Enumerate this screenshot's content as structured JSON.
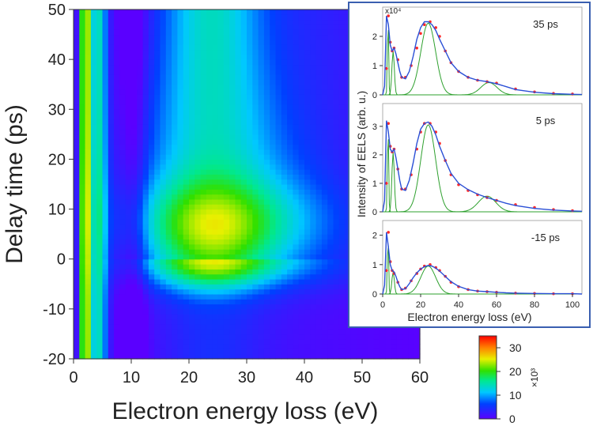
{
  "chart_data": [
    {
      "type": "heatmap",
      "xlabel": "Electron energy loss (eV)",
      "ylabel": "Delay time (ps)",
      "xlim": [
        0,
        60
      ],
      "ylim": [
        -20,
        50
      ],
      "xticks": [
        0,
        10,
        20,
        30,
        40,
        50,
        60
      ],
      "yticks": [
        -20,
        -10,
        0,
        10,
        20,
        30,
        40,
        50
      ],
      "colorbar": {
        "range": [
          0,
          35
        ],
        "ticks": [
          0,
          10,
          20,
          30
        ],
        "multiplier": "×10³"
      },
      "features": {
        "zero_loss_peak_eV": 2,
        "plasmon_peak_eV": 23.5,
        "peak_delay_ps": 7,
        "max_intensity": 35
      }
    },
    {
      "type": "scatter",
      "xlabel": "Electron energy loss (eV)",
      "ylabel": "Intensity of EELS (arb. u.)",
      "xlim": [
        0,
        105
      ],
      "xticks": [
        0,
        20,
        40,
        60,
        80,
        100
      ],
      "multiplier": "x10⁴",
      "panels": [
        {
          "label": "35 ps",
          "ylim": [
            0,
            3
          ],
          "yticks": [
            0,
            1,
            2
          ],
          "series": [
            {
              "name": "data",
              "color": "#ff2a2a",
              "x": [
                2,
                3,
                4,
                5,
                6,
                8,
                10,
                12,
                15,
                18,
                20,
                22,
                25,
                28,
                30,
                33,
                36,
                40,
                45,
                50,
                55,
                60,
                70,
                80,
                90,
                100
              ],
              "y": [
                0.9,
                2.7,
                1.8,
                1.5,
                1.6,
                1.2,
                0.6,
                0.6,
                1.0,
                1.6,
                2.1,
                2.4,
                2.5,
                2.3,
                2.0,
                1.5,
                1.1,
                0.8,
                0.6,
                0.5,
                0.45,
                0.4,
                0.2,
                0.1,
                0.05,
                0.03
              ]
            },
            {
              "name": "fit",
              "color": "#2a4fd6",
              "x": [
                0,
                1,
                2,
                3,
                4,
                5,
                6,
                7,
                8,
                9,
                10,
                12,
                14,
                16,
                18,
                20,
                22,
                24,
                26,
                28,
                30,
                33,
                36,
                40,
                45,
                50,
                55,
                60,
                65,
                70,
                80,
                90,
                100,
                105
              ],
              "y": [
                0,
                0.3,
                2.7,
                2.4,
                1.7,
                1.5,
                1.6,
                1.4,
                1.1,
                0.8,
                0.6,
                0.55,
                0.8,
                1.3,
                1.9,
                2.3,
                2.5,
                2.5,
                2.4,
                2.2,
                1.9,
                1.5,
                1.1,
                0.8,
                0.6,
                0.5,
                0.45,
                0.38,
                0.28,
                0.18,
                0.09,
                0.04,
                0.02,
                0.01
              ]
            },
            {
              "name": "components",
              "color": "#2ea02e",
              "peaks": [
                [
                  2.8,
                  2.7,
                  0.45
                ],
                [
                  5.5,
                  1.5,
                  0.9
                ],
                [
                  24,
                  2.45,
                  5.5
                ],
                [
                  56,
                  0.42,
                  6
                ]
              ]
            }
          ]
        },
        {
          "label": "5 ps",
          "ylim": [
            0,
            3.8
          ],
          "yticks": [
            0,
            1,
            2,
            3
          ],
          "series": [
            {
              "name": "data",
              "color": "#ff2a2a",
              "x": [
                2,
                3,
                4,
                5,
                6,
                8,
                10,
                12,
                15,
                18,
                20,
                22,
                25,
                28,
                30,
                33,
                36,
                40,
                45,
                50,
                55,
                60,
                70,
                80,
                90,
                100
              ],
              "y": [
                1.0,
                3.1,
                2.3,
                2.1,
                2.2,
                1.5,
                0.8,
                0.8,
                1.3,
                2.2,
                2.8,
                3.1,
                3.1,
                2.8,
                2.4,
                1.8,
                1.3,
                0.95,
                0.75,
                0.6,
                0.5,
                0.4,
                0.25,
                0.15,
                0.08,
                0.04
              ]
            },
            {
              "name": "fit",
              "color": "#2a4fd6",
              "x": [
                0,
                1,
                2,
                3,
                4,
                5,
                6,
                7,
                8,
                9,
                10,
                12,
                14,
                16,
                18,
                20,
                22,
                24,
                26,
                28,
                30,
                33,
                36,
                40,
                45,
                50,
                55,
                60,
                65,
                70,
                80,
                90,
                100,
                105
              ],
              "y": [
                0,
                0.4,
                3.2,
                2.8,
                2.2,
                2.1,
                2.2,
                1.9,
                1.5,
                1.1,
                0.8,
                0.75,
                1.1,
                1.7,
                2.4,
                2.9,
                3.1,
                3.15,
                3.0,
                2.7,
                2.3,
                1.8,
                1.35,
                1.0,
                0.78,
                0.62,
                0.5,
                0.4,
                0.3,
                0.22,
                0.12,
                0.06,
                0.03,
                0.02
              ]
            },
            {
              "name": "components",
              "color": "#2ea02e",
              "peaks": [
                [
                  2.8,
                  3.1,
                  0.45
                ],
                [
                  5.5,
                  2.1,
                  0.9
                ],
                [
                  24,
                  3.05,
                  5.5
                ],
                [
                  55,
                  0.55,
                  6.5
                ]
              ]
            }
          ]
        },
        {
          "label": "-15 ps",
          "ylim": [
            0,
            2.5
          ],
          "yticks": [
            0,
            1,
            2
          ],
          "series": [
            {
              "name": "data",
              "color": "#ff2a2a",
              "x": [
                2,
                3,
                4,
                5,
                6,
                8,
                10,
                12,
                15,
                18,
                20,
                22,
                25,
                28,
                30,
                33,
                36,
                40,
                45,
                50,
                55,
                60,
                70,
                80,
                90,
                100
              ],
              "y": [
                0.8,
                2.1,
                1.1,
                0.8,
                0.7,
                0.4,
                0.15,
                0.2,
                0.45,
                0.7,
                0.85,
                0.95,
                1.0,
                0.9,
                0.8,
                0.6,
                0.4,
                0.25,
                0.15,
                0.1,
                0.08,
                0.06,
                0.03,
                0.02,
                0.01,
                0.01
              ]
            },
            {
              "name": "fit",
              "color": "#2a4fd6",
              "x": [
                0,
                1,
                2,
                3,
                4,
                5,
                6,
                7,
                8,
                9,
                10,
                12,
                14,
                16,
                18,
                20,
                22,
                24,
                26,
                28,
                30,
                33,
                36,
                40,
                45,
                50,
                55,
                60,
                65,
                70,
                80,
                90,
                100,
                105
              ],
              "y": [
                0,
                0.3,
                2.1,
                1.6,
                1.0,
                0.8,
                0.75,
                0.6,
                0.4,
                0.25,
                0.15,
                0.18,
                0.35,
                0.55,
                0.72,
                0.85,
                0.93,
                0.97,
                0.95,
                0.88,
                0.78,
                0.6,
                0.42,
                0.26,
                0.15,
                0.1,
                0.08,
                0.06,
                0.04,
                0.03,
                0.02,
                0.01,
                0.01,
                0.0
              ]
            },
            {
              "name": "components",
              "color": "#2ea02e",
              "peaks": [
                [
                  2.8,
                  2.0,
                  0.45
                ],
                [
                  5.5,
                  0.75,
                  0.9
                ],
                [
                  24,
                  0.95,
                  5.5
                ]
              ]
            }
          ]
        }
      ]
    }
  ]
}
